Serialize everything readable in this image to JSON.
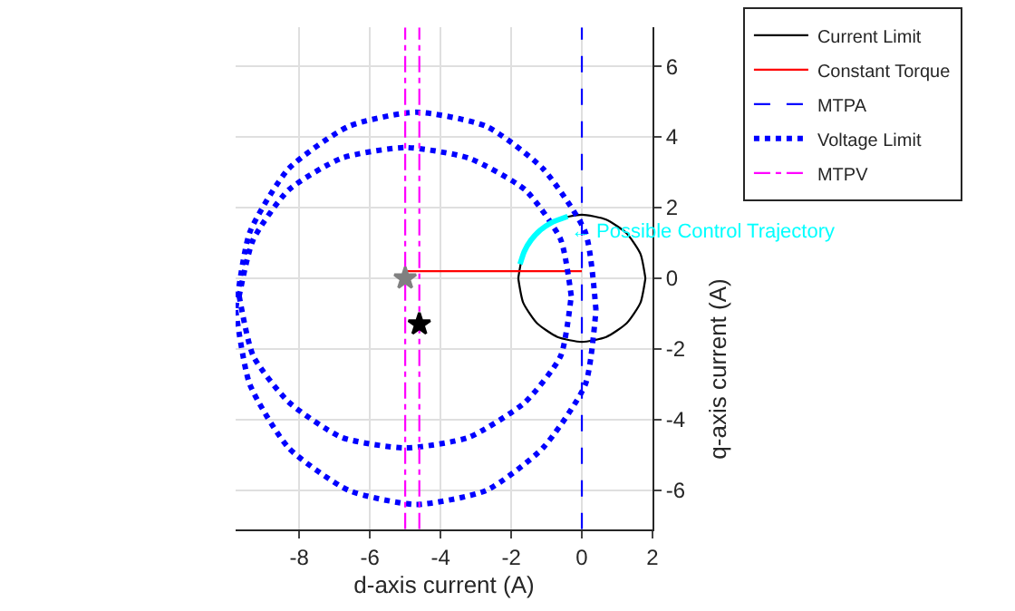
{
  "chart_data": {
    "type": "line",
    "xlabel": "d-axis current (A)",
    "ylabel": "q-axis current (A)",
    "xlim": [
      -9.8,
      2
    ],
    "ylim": [
      -7.1,
      7.1
    ],
    "xticks": [
      -8,
      -6,
      -4,
      -2,
      0,
      2
    ],
    "yticks": [
      -6,
      -4,
      -2,
      0,
      2,
      4,
      6
    ],
    "grid": true,
    "legend": "top right",
    "annotations": [
      "← Possible Control Trajectory"
    ],
    "series": [
      {
        "name": "Current Limit",
        "color": "#000000",
        "line_style": "solid",
        "x": [
          1.8,
          1.66,
          1.27,
          0.69,
          0,
          -0.69,
          -1.27,
          -1.66,
          -1.8,
          null,
          -1.8,
          -1.66,
          -1.27,
          -0.69,
          0,
          0.69,
          1.27,
          1.66,
          1.8
        ],
        "values": [
          0,
          0.69,
          1.27,
          1.66,
          1.8,
          1.66,
          1.27,
          0.69,
          0,
          null,
          0,
          -0.69,
          -1.27,
          -1.66,
          -1.8,
          -1.66,
          -1.27,
          -0.69,
          0
        ]
      },
      {
        "name": "Constant Torque",
        "color": "#ff0000",
        "line_style": "solid",
        "x": [
          -5,
          0
        ],
        "values": [
          0.2,
          0.2
        ]
      },
      {
        "name": "MTPA",
        "color": "#0000ff",
        "line_style": "dashed",
        "x": [
          0,
          0
        ],
        "values": [
          -7.1,
          7.1
        ]
      },
      {
        "name": "Voltage Limit",
        "color": "#0000ff",
        "line_style": "dotted",
        "x": [
          0.4,
          0.1,
          -1.1,
          -2.7,
          -4.7,
          -6.6,
          -8.3,
          -9.4,
          -9.8,
          null,
          -9.8,
          -9.4,
          -8.3,
          -6.6,
          -4.7,
          -2.7,
          -1.1,
          0.1,
          0.4
        ],
        "values": [
          -0.9,
          1.3,
          3.1,
          4.3,
          4.7,
          4.3,
          3.1,
          1.3,
          -0.9,
          null,
          -0.9,
          -3.0,
          -4.8,
          -6.0,
          -6.4,
          -6.0,
          -4.8,
          -3.0,
          -0.9
        ]
      },
      {
        "color": "#0000ff",
        "line_style": "dotted",
        "x": [
          -0.3,
          -0.6,
          -1.6,
          -3.2,
          -5.0,
          -6.8,
          -8.3,
          -9.3,
          -9.7,
          null,
          -9.7,
          -9.3,
          -8.3,
          -6.8,
          -5.0,
          -3.2,
          -1.6,
          -0.6,
          -0.3
        ],
        "values": [
          -0.5,
          1.1,
          2.5,
          3.4,
          3.7,
          3.4,
          2.5,
          1.1,
          -0.5,
          null,
          -0.5,
          -2.2,
          -3.5,
          -4.5,
          -4.8,
          -4.5,
          -3.5,
          -2.2,
          -0.5
        ]
      },
      {
        "name": "MTPV",
        "color": "#ff00ff",
        "line_style": "dashdot",
        "x": [
          -5.0,
          -5.0
        ],
        "values": [
          -7.1,
          7.1
        ]
      },
      {
        "color": "#ff00ff",
        "line_style": "dashdot",
        "x": [
          -4.6,
          -4.6
        ],
        "values": [
          -7.1,
          7.1
        ]
      },
      {
        "color": "#00ffff",
        "line_style": "solid",
        "x": [
          -1.75,
          -1.63,
          -1.44,
          -1.18,
          -0.87,
          -0.4
        ],
        "values": [
          0.4,
          0.76,
          1.08,
          1.36,
          1.57,
          1.75
        ]
      },
      {
        "type": "scatter",
        "color": "#808080",
        "marker": "star",
        "x": [
          -5.0
        ],
        "values": [
          0
        ]
      },
      {
        "type": "scatter",
        "color": "#000000",
        "marker": "star",
        "x": [
          -4.6
        ],
        "values": [
          -1.3
        ]
      }
    ]
  }
}
